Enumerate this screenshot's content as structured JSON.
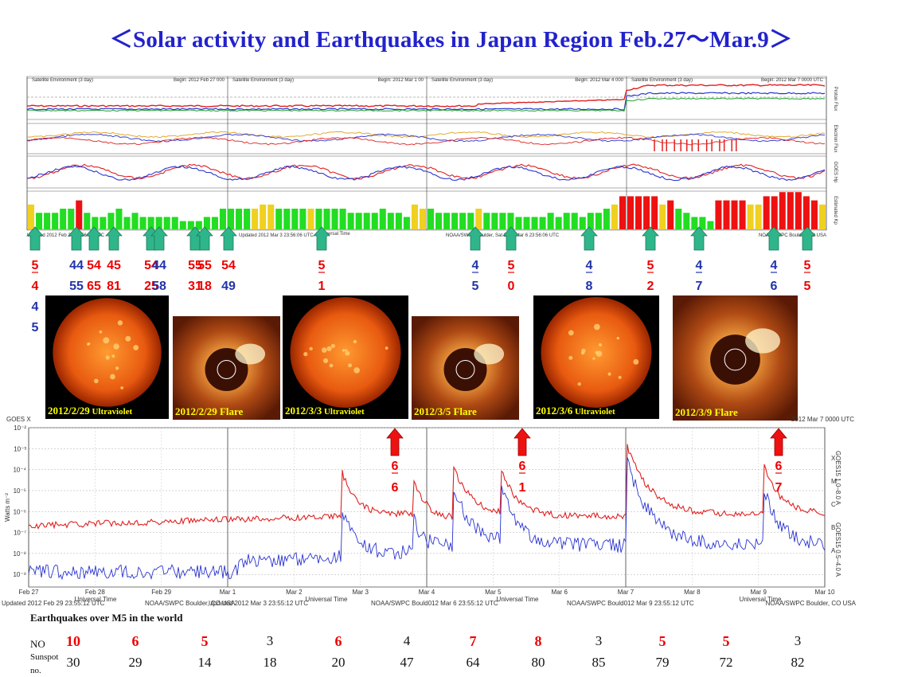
{
  "title": "＜Solar activity and Earthquakes in Japan Region Feb.27～Mar.9＞",
  "top_panel": {
    "headers": [
      {
        "left": "Satellite Environment (3 day)",
        "right": "Begin: 2012 Feb 27 000"
      },
      {
        "left": "Satellite Environment (3 day)",
        "right": "Begin: 2012 Mar 1 00"
      },
      {
        "left": "Satellite Environment (3 day)",
        "right": "Begin: 2012 Mar 4 000"
      },
      {
        "left": "Satellite Environment (3 day)",
        "right": "Begin: 2012 Mar 7 0000 UTC"
      }
    ],
    "side_labels": [
      "Proton Flux",
      "Electron Flux",
      "GOES Hp",
      "Estimated Kp"
    ],
    "footer_left": "Updated 2012 Feb 27 23:56:06 UTC",
    "footer_mid1": "Updated 2012 Mar 3 23:56:06 UTC",
    "footer_mid2": "NOAA/SWPC Boulder, Sat 2012 Mar 6 23:56:06 UTC",
    "footer_right": "NOAA/SWPC Boulder, CO USA",
    "axis_label": "Universal Time",
    "kp_colors": {
      "green": "#22dd22",
      "yellow": "#f0d020",
      "red": "#ee1111"
    }
  },
  "earthquake_markers": [
    {
      "x": 44,
      "lines": [
        {
          "t": "5",
          "c": "red"
        },
        {
          "t": "4",
          "c": "red"
        },
        {
          "t": "4",
          "c": "blue"
        },
        {
          "t": "5",
          "c": "blue"
        }
      ]
    },
    {
      "x": 96,
      "lines": [
        {
          "t": "44",
          "c": "blue"
        },
        {
          "t": "55",
          "c": "blue"
        }
      ]
    },
    {
      "x": 118,
      "lines": [
        {
          "t": "54",
          "c": "red"
        },
        {
          "t": "65",
          "c": "red"
        }
      ]
    },
    {
      "x": 143,
      "lines": [
        {
          "t": "45",
          "c": "red"
        },
        {
          "t": "81",
          "c": "red"
        }
      ]
    },
    {
      "x": 190,
      "lines": [
        {
          "t": "54",
          "c": "red"
        },
        {
          "t": "25",
          "c": "red"
        }
      ]
    },
    {
      "x": 200,
      "lines": [
        {
          "t": "44",
          "c": "blue"
        },
        {
          "t": "58",
          "c": "blue"
        }
      ]
    },
    {
      "x": 245,
      "lines": [
        {
          "t": "55",
          "c": "red"
        },
        {
          "t": "31",
          "c": "red"
        }
      ]
    },
    {
      "x": 257,
      "lines": [
        {
          "t": "55",
          "c": "red"
        },
        {
          "t": "18",
          "c": "red"
        }
      ]
    },
    {
      "x": 287,
      "lines": [
        {
          "t": "54",
          "c": "red"
        },
        {
          "t": "49",
          "c": "blue"
        }
      ]
    },
    {
      "x": 404,
      "lines": [
        {
          "t": "5",
          "c": "red"
        },
        {
          "t": "1",
          "c": "red"
        }
      ]
    },
    {
      "x": 597,
      "lines": [
        {
          "t": "4",
          "c": "blue"
        },
        {
          "t": "5",
          "c": "blue"
        }
      ]
    },
    {
      "x": 642,
      "lines": [
        {
          "t": "5",
          "c": "red"
        },
        {
          "t": "0",
          "c": "red"
        }
      ]
    },
    {
      "x": 740,
      "lines": [
        {
          "t": "4",
          "c": "blue"
        },
        {
          "t": "8",
          "c": "blue"
        }
      ]
    },
    {
      "x": 817,
      "lines": [
        {
          "t": "5",
          "c": "red"
        },
        {
          "t": "2",
          "c": "red"
        }
      ]
    },
    {
      "x": 878,
      "lines": [
        {
          "t": "4",
          "c": "blue"
        },
        {
          "t": "7",
          "c": "blue"
        }
      ]
    },
    {
      "x": 972,
      "lines": [
        {
          "t": "4",
          "c": "blue"
        },
        {
          "t": "6",
          "c": "blue"
        }
      ]
    },
    {
      "x": 1014,
      "lines": [
        {
          "t": "5",
          "c": "red"
        },
        {
          "t": "5",
          "c": "red"
        }
      ]
    }
  ],
  "images": [
    {
      "caption": "2012/2/29",
      "caption2": "Ultraviolet",
      "kind": "sun"
    },
    {
      "caption": "2012/2/29 Flare",
      "caption2": "",
      "kind": "corona"
    },
    {
      "caption": "2012/3/3",
      "caption2": "Ultraviolet",
      "kind": "sun"
    },
    {
      "caption": "2012/3/5 Flare",
      "caption2": "",
      "kind": "corona"
    },
    {
      "caption": "2012/3/6",
      "caption2": "Ultraviolet",
      "kind": "sun"
    },
    {
      "caption": "2012/3/9 Flare",
      "caption2": "",
      "kind": "corona"
    }
  ],
  "flare_markers": [
    {
      "x": 496,
      "top": "6",
      "bottom": "6"
    },
    {
      "x": 656,
      "top": "6",
      "bottom": "1"
    },
    {
      "x": 978,
      "top": "6",
      "bottom": "7"
    }
  ],
  "xray_panel": {
    "title_left": "GOES X",
    "title_right": "2012 Mar 7 0000 UTC",
    "ylabel": "Watts m⁻²",
    "y_ticks": [
      "10⁻²",
      "10⁻³",
      "10⁻⁴",
      "10⁻⁵",
      "10⁻⁶",
      "10⁻⁷",
      "10⁻⁸",
      "10⁻⁹"
    ],
    "class_labels": [
      "X",
      "M",
      "C",
      "B",
      "A"
    ],
    "right_label_red": "GOES15 1.0–8.0 A",
    "right_label_blue": "GOES15 0.5–4.0 A",
    "x_ticks": [
      "Feb 27",
      "Feb 28",
      "Feb 29",
      "Mar 1",
      "Mar 2",
      "Mar 3",
      "Mar 4",
      "Mar 5",
      "Mar 6",
      "Mar 7",
      "Mar 8",
      "Mar 9",
      "Mar 10"
    ],
    "axis_label": "Universal Time",
    "footer": [
      "Updated 2012 Feb 29 23:55:12 UTC",
      "NOAA/SWPC Boulder, CO USA",
      "Updated 2012 Mar 3 23:55:12 UTC",
      "NOAA/SWPC Bould012 Mar 6 23:55:12 UTC",
      "NOAA/SWPC Bould012 Mar 9 23:55:12 UTC",
      "NOAA/SWPC Boulder, CO USA"
    ]
  },
  "footer": {
    "heading": "Earthquakes over M5 in the world",
    "no_label": "NO",
    "sunspot_label_1": "Sunspot",
    "sunspot_label_2": "no.",
    "counts": [
      {
        "v": "10",
        "hi": true
      },
      {
        "v": "6",
        "hi": true
      },
      {
        "v": "5",
        "hi": true
      },
      {
        "v": "3",
        "hi": false
      },
      {
        "v": "6",
        "hi": true
      },
      {
        "v": "4",
        "hi": false
      },
      {
        "v": "7",
        "hi": true
      },
      {
        "v": "8",
        "hi": true
      },
      {
        "v": "3",
        "hi": false
      },
      {
        "v": "5",
        "hi": true
      },
      {
        "v": "5",
        "hi": true
      },
      {
        "v": "3",
        "hi": false
      }
    ],
    "sunspots": [
      "30",
      "29",
      "14",
      "18",
      "20",
      "47",
      "64",
      "80",
      "85",
      "79",
      "72",
      "82"
    ]
  }
}
